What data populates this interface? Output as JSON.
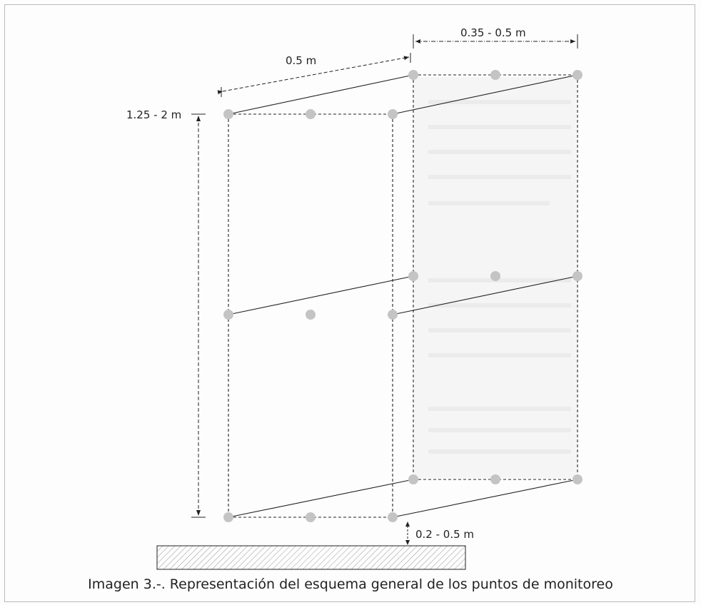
{
  "diagram": {
    "dimensions": {
      "depth": "0.5 m",
      "width": "0.35 - 0.5 m",
      "height": "1.25 - 2 m",
      "clearance": "0.2 - 0.5 m"
    }
  },
  "caption": "Imagen 3.-. Representación del esquema general de los puntos de monitoreo",
  "colors": {
    "point": "#c4c4c4",
    "back_panel": "#ececec",
    "ground_fill": "#ffffff",
    "line": "#222222"
  }
}
